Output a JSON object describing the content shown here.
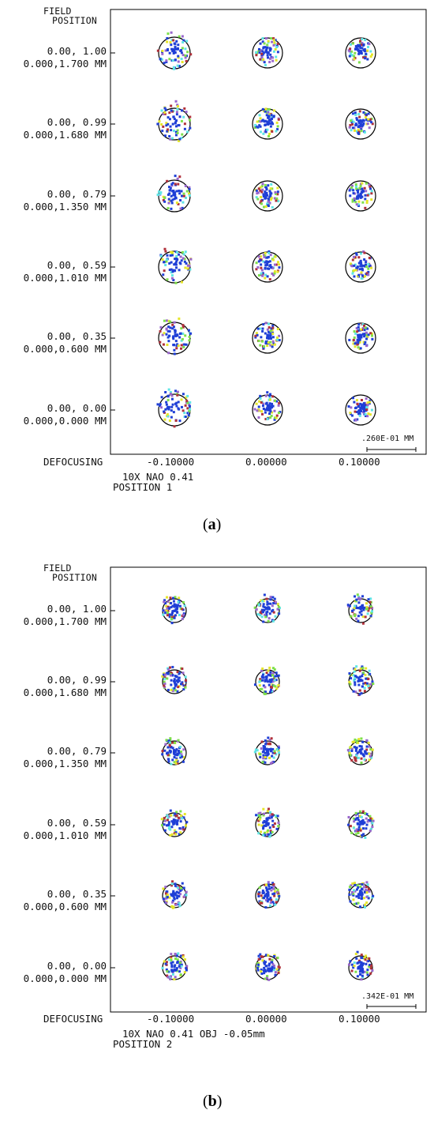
{
  "panels": [
    {
      "id": "a",
      "field_header": [
        "FIELD",
        "POSITION"
      ],
      "rows": [
        {
          "line1": "0.00, 1.00",
          "line2": "0.000,1.700 MM"
        },
        {
          "line1": "0.00, 0.99",
          "line2": "0.000,1.680 MM"
        },
        {
          "line1": "0.00, 0.79",
          "line2": "0.000,1.350 MM"
        },
        {
          "line1": "0.00, 0.59",
          "line2": "0.000,1.010 MM"
        },
        {
          "line1": "0.00, 0.35",
          "line2": "0.000,0.600 MM"
        },
        {
          "line1": "0.00, 0.00",
          "line2": "0.000,0.000 MM"
        }
      ],
      "defocus_label": "DEFOCUSING",
      "defocus_values": [
        "-0.10000",
        "0.00000",
        "0.10000"
      ],
      "scale_label": ".260E-01 MM",
      "notes": [
        "10X NAO 0.41",
        "POSITION  1"
      ],
      "caption_letter": "a"
    },
    {
      "id": "b",
      "field_header": [
        "FIELD",
        "POSITION"
      ],
      "rows": [
        {
          "line1": "0.00, 1.00",
          "line2": "0.000,1.700 MM"
        },
        {
          "line1": "0.00, 0.99",
          "line2": "0.000,1.680 MM"
        },
        {
          "line1": "0.00, 0.79",
          "line2": "0.000,1.350 MM"
        },
        {
          "line1": "0.00, 0.59",
          "line2": "0.000,1.010 MM"
        },
        {
          "line1": "0.00, 0.35",
          "line2": "0.000,0.600 MM"
        },
        {
          "line1": "0.00, 0.00",
          "line2": "0.000,0.000 MM"
        }
      ],
      "defocus_label": "DEFOCUSING",
      "defocus_values": [
        "-0.10000",
        "0.00000",
        "0.10000"
      ],
      "scale_label": ".342E-01 MM",
      "notes": [
        "10X NAO 0.41 OBJ -0.05mm",
        "POSITION  2"
      ],
      "caption_letter": "b"
    }
  ],
  "colors": {
    "frame": "#000000",
    "airy_circle": "#000000",
    "ray_blue": "#1f3fd6",
    "ray_cyan": "#5fe6e6",
    "ray_green": "#7de04a",
    "ray_yellow": "#e6e62a",
    "ray_red": "#b0303a",
    "ray_purple": "#9966cc"
  }
}
